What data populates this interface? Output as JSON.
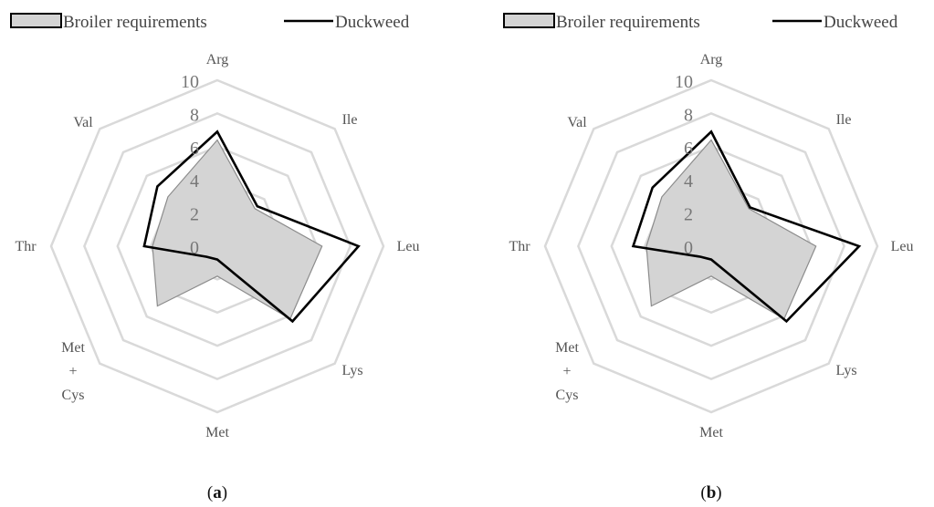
{
  "chart_data": [
    {
      "type": "radar",
      "caption_letter": "a",
      "axes": [
        "Arg",
        "Ile",
        "Leu",
        "Lys",
        "Met",
        "Met + Cys",
        "Thr",
        "Val"
      ],
      "rlim": [
        0,
        10
      ],
      "ticks": [
        "0",
        "2",
        "4",
        "6",
        "8",
        "10"
      ],
      "grid": true,
      "legend_position": "top",
      "series": [
        {
          "name": "Broiler requirements",
          "values": [
            6.4,
            3.2,
            6.3,
            6.2,
            1.8,
            5.1,
            3.9,
            4.2
          ],
          "fill": "#d4d4d4",
          "stroke": "#8c8c8c"
        },
        {
          "name": "Duckweed",
          "values": [
            6.9,
            3.4,
            8.5,
            6.4,
            0.8,
            0.9,
            4.4,
            5.1
          ],
          "fill": "none",
          "stroke": "#000000"
        }
      ]
    },
    {
      "type": "radar",
      "caption_letter": "b",
      "axes": [
        "Arg",
        "Ile",
        "Leu",
        "Lys",
        "Met",
        "Met + Cys",
        "Thr",
        "Val"
      ],
      "rlim": [
        0,
        10
      ],
      "ticks": [
        "0",
        "2",
        "4",
        "6",
        "8",
        "10"
      ],
      "grid": true,
      "legend_position": "top",
      "series": [
        {
          "name": "Broiler requirements",
          "values": [
            6.4,
            3.2,
            6.3,
            6.2,
            1.8,
            5.1,
            3.9,
            4.2
          ],
          "fill": "#d4d4d4",
          "stroke": "#8c8c8c"
        },
        {
          "name": "Duckweed",
          "values": [
            6.9,
            3.3,
            8.9,
            6.4,
            0.8,
            0.9,
            4.7,
            5.0
          ],
          "fill": "none",
          "stroke": "#000000"
        }
      ]
    }
  ]
}
